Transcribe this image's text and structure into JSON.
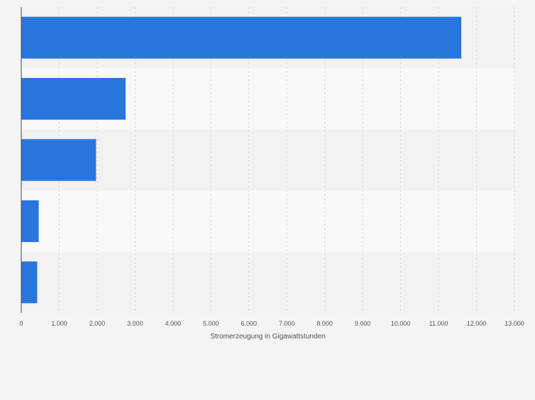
{
  "colors": {
    "background": "#f4f4f4",
    "band_light": "#f9f9f9",
    "band_dark": "#f2f2f2",
    "bar": "#2876dd",
    "gridline": "#d8d8d8",
    "axis": "#444444",
    "text": "#555555"
  },
  "chart_data": {
    "type": "bar",
    "orientation": "horizontal",
    "categories": [
      "",
      "",
      "",
      "",
      ""
    ],
    "values": [
      11600,
      2750,
      1970,
      460,
      420
    ],
    "xlabel": "Stromerzeugung in Gigawattstunden",
    "xlim": [
      0,
      13000
    ],
    "x_ticks": [
      0,
      1000,
      2000,
      3000,
      4000,
      5000,
      6000,
      7000,
      8000,
      9000,
      10000,
      11000,
      12000,
      13000
    ],
    "x_tick_labels": [
      "0",
      "1.000",
      "2.000",
      "3.000",
      "4.000",
      "5.000",
      "6.000",
      "7.000",
      "8.000",
      "9.000",
      "10.000",
      "11.000",
      "12.000",
      "13.000"
    ],
    "grid": true,
    "legend": "none"
  }
}
